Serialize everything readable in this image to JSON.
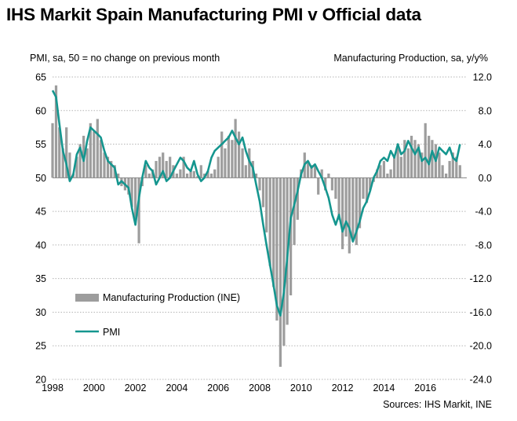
{
  "title": "IHS Markit Spain Manufacturing PMI v Official data",
  "left_axis_note": "PMI, sa, 50 = no change on previous month",
  "right_axis_note": "Manufacturing Production, sa, y/y%",
  "source": "Sources: IHS Markit, INE",
  "colors": {
    "pmi": "#15968f",
    "production": "#9d9d9d",
    "grid": "#b5b5b5"
  },
  "chart_data": {
    "type": "bar+line",
    "x_range": [
      1998,
      2018
    ],
    "x_ticks": [
      "1998",
      "2000",
      "2002",
      "2004",
      "2006",
      "2008",
      "2010",
      "2012",
      "2014",
      "2016"
    ],
    "y_left": {
      "range": [
        20,
        65
      ],
      "ticks": [
        "65",
        "60",
        "55",
        "50",
        "45",
        "40",
        "35",
        "30",
        "25",
        "20"
      ]
    },
    "y_right": {
      "range": [
        -24,
        12
      ],
      "ticks": [
        "12.0",
        "8.0",
        "4.0",
        "0.0",
        "-4.0",
        "-8.0",
        "-12.0",
        "-16.0",
        "-20.0",
        "-24.0"
      ]
    },
    "grid": "horizontal dotted",
    "legend": {
      "position": "lower-left",
      "production_label": "Manufacturing Production (INE)",
      "pmi_label": "PMI"
    },
    "series": [
      {
        "name": "Manufacturing Production (INE)",
        "axis": "right",
        "kind": "bar",
        "x": [
          1998.0,
          1998.17,
          1998.33,
          1998.5,
          1998.67,
          1998.83,
          1999.0,
          1999.17,
          1999.33,
          1999.5,
          1999.67,
          1999.83,
          2000.0,
          2000.17,
          2000.33,
          2000.5,
          2000.67,
          2000.83,
          2001.0,
          2001.17,
          2001.33,
          2001.5,
          2001.67,
          2001.83,
          2002.0,
          2002.17,
          2002.33,
          2002.5,
          2002.67,
          2002.83,
          2003.0,
          2003.17,
          2003.33,
          2003.5,
          2003.67,
          2003.83,
          2004.0,
          2004.17,
          2004.33,
          2004.5,
          2004.67,
          2004.83,
          2005.0,
          2005.17,
          2005.33,
          2005.5,
          2005.67,
          2005.83,
          2006.0,
          2006.17,
          2006.33,
          2006.5,
          2006.67,
          2006.83,
          2007.0,
          2007.17,
          2007.33,
          2007.5,
          2007.67,
          2007.83,
          2008.0,
          2008.17,
          2008.33,
          2008.5,
          2008.67,
          2008.83,
          2009.0,
          2009.17,
          2009.33,
          2009.5,
          2009.67,
          2009.83,
          2010.0,
          2010.17,
          2010.33,
          2010.5,
          2010.67,
          2010.83,
          2011.0,
          2011.17,
          2011.33,
          2011.5,
          2011.67,
          2011.83,
          2012.0,
          2012.17,
          2012.33,
          2012.5,
          2012.67,
          2012.83,
          2013.0,
          2013.17,
          2013.33,
          2013.5,
          2013.67,
          2013.83,
          2014.0,
          2014.17,
          2014.33,
          2014.5,
          2014.67,
          2014.83,
          2015.0,
          2015.17,
          2015.33,
          2015.5,
          2015.67,
          2015.83,
          2016.0,
          2016.17,
          2016.33,
          2016.5,
          2016.67,
          2016.83,
          2017.0,
          2017.17,
          2017.33,
          2017.5,
          2017.67
        ],
        "values": [
          6.5,
          11.0,
          6.0,
          3.5,
          6.0,
          3.0,
          0.5,
          2.5,
          4.0,
          5.0,
          3.5,
          6.5,
          5.5,
          7.0,
          4.5,
          3.0,
          2.5,
          2.0,
          1.5,
          0.5,
          -1.0,
          -1.5,
          -2.0,
          -3.5,
          -5.0,
          -7.8,
          -1.0,
          1.5,
          0.5,
          1.0,
          2.0,
          2.5,
          3.0,
          2.0,
          2.5,
          1.5,
          0.5,
          1.0,
          2.5,
          0.5,
          1.0,
          0.8,
          0.2,
          1.5,
          0.5,
          0.8,
          0.5,
          1.0,
          2.5,
          5.5,
          3.5,
          5.0,
          4.5,
          7.0,
          5.5,
          3.5,
          1.5,
          3.5,
          2.0,
          0.5,
          -1.5,
          -3.5,
          -6.5,
          -10.5,
          -13.0,
          -17.0,
          -22.5,
          -20.0,
          -17.5,
          -14.0,
          -8.0,
          -5.0,
          1.0,
          3.0,
          2.0,
          1.5,
          1.5,
          -2.0,
          1.0,
          -1.5,
          0.5,
          -1.5,
          -2.5,
          -5.0,
          -8.5,
          -7.0,
          -9.0,
          -7.5,
          -8.0,
          -6.0,
          -2.5,
          -3.0,
          -1.5,
          -0.5,
          1.0,
          1.5,
          2.0,
          0.5,
          1.0,
          2.5,
          3.5,
          2.5,
          4.5,
          3.5,
          5.0,
          4.5,
          4.0,
          3.0,
          6.5,
          5.0,
          4.5,
          4.0,
          3.0,
          1.5,
          0.5,
          2.0,
          3.0,
          2.5,
          1.5
        ]
      },
      {
        "name": "PMI",
        "axis": "left",
        "kind": "line",
        "x": [
          1998.0,
          1998.17,
          1998.33,
          1998.5,
          1998.67,
          1998.83,
          1999.0,
          1999.17,
          1999.33,
          1999.5,
          1999.67,
          1999.83,
          2000.0,
          2000.17,
          2000.33,
          2000.5,
          2000.67,
          2000.83,
          2001.0,
          2001.17,
          2001.33,
          2001.5,
          2001.67,
          2001.83,
          2002.0,
          2002.17,
          2002.33,
          2002.5,
          2002.67,
          2002.83,
          2003.0,
          2003.17,
          2003.33,
          2003.5,
          2003.67,
          2003.83,
          2004.0,
          2004.17,
          2004.33,
          2004.5,
          2004.67,
          2004.83,
          2005.0,
          2005.17,
          2005.33,
          2005.5,
          2005.67,
          2005.83,
          2006.0,
          2006.17,
          2006.33,
          2006.5,
          2006.67,
          2006.83,
          2007.0,
          2007.17,
          2007.33,
          2007.5,
          2007.67,
          2007.83,
          2008.0,
          2008.17,
          2008.33,
          2008.5,
          2008.67,
          2008.83,
          2009.0,
          2009.17,
          2009.33,
          2009.5,
          2009.67,
          2009.83,
          2010.0,
          2010.17,
          2010.33,
          2010.5,
          2010.67,
          2010.83,
          2011.0,
          2011.17,
          2011.33,
          2011.5,
          2011.67,
          2011.83,
          2012.0,
          2012.17,
          2012.33,
          2012.5,
          2012.67,
          2012.83,
          2013.0,
          2013.17,
          2013.33,
          2013.5,
          2013.67,
          2013.83,
          2014.0,
          2014.17,
          2014.33,
          2014.5,
          2014.67,
          2014.83,
          2015.0,
          2015.17,
          2015.33,
          2015.5,
          2015.67,
          2015.83,
          2016.0,
          2016.17,
          2016.33,
          2016.5,
          2016.67,
          2016.83,
          2017.0,
          2017.17,
          2017.33,
          2017.5,
          2017.67
        ],
        "values": [
          63.0,
          62.0,
          58.0,
          54.0,
          52.0,
          49.5,
          50.5,
          53.5,
          54.5,
          52.5,
          55.5,
          57.5,
          57.0,
          56.5,
          56.0,
          54.0,
          52.5,
          52.0,
          51.5,
          49.0,
          49.5,
          49.0,
          48.5,
          45.5,
          43.0,
          47.0,
          50.0,
          52.5,
          51.5,
          51.0,
          49.0,
          50.0,
          51.0,
          49.5,
          50.0,
          51.0,
          52.0,
          53.0,
          52.5,
          51.5,
          51.0,
          52.5,
          50.5,
          49.5,
          50.0,
          51.0,
          53.0,
          54.0,
          54.5,
          55.0,
          55.5,
          56.0,
          57.0,
          56.0,
          55.0,
          56.0,
          54.0,
          52.5,
          51.5,
          49.0,
          46.5,
          43.0,
          40.0,
          37.0,
          34.0,
          31.0,
          29.5,
          33.0,
          38.0,
          44.0,
          46.0,
          48.0,
          50.5,
          52.0,
          52.5,
          51.5,
          52.0,
          51.0,
          50.0,
          48.5,
          47.0,
          44.5,
          43.0,
          44.5,
          42.0,
          43.5,
          42.5,
          40.5,
          42.0,
          43.5,
          45.5,
          46.5,
          48.0,
          50.0,
          51.0,
          52.5,
          53.0,
          52.5,
          54.0,
          53.0,
          55.0,
          53.5,
          54.0,
          55.5,
          54.5,
          53.5,
          54.5,
          52.5,
          53.0,
          52.0,
          54.0,
          52.5,
          54.5,
          54.0,
          53.5,
          54.5,
          53.0,
          52.5,
          55.0
        ]
      }
    ]
  }
}
